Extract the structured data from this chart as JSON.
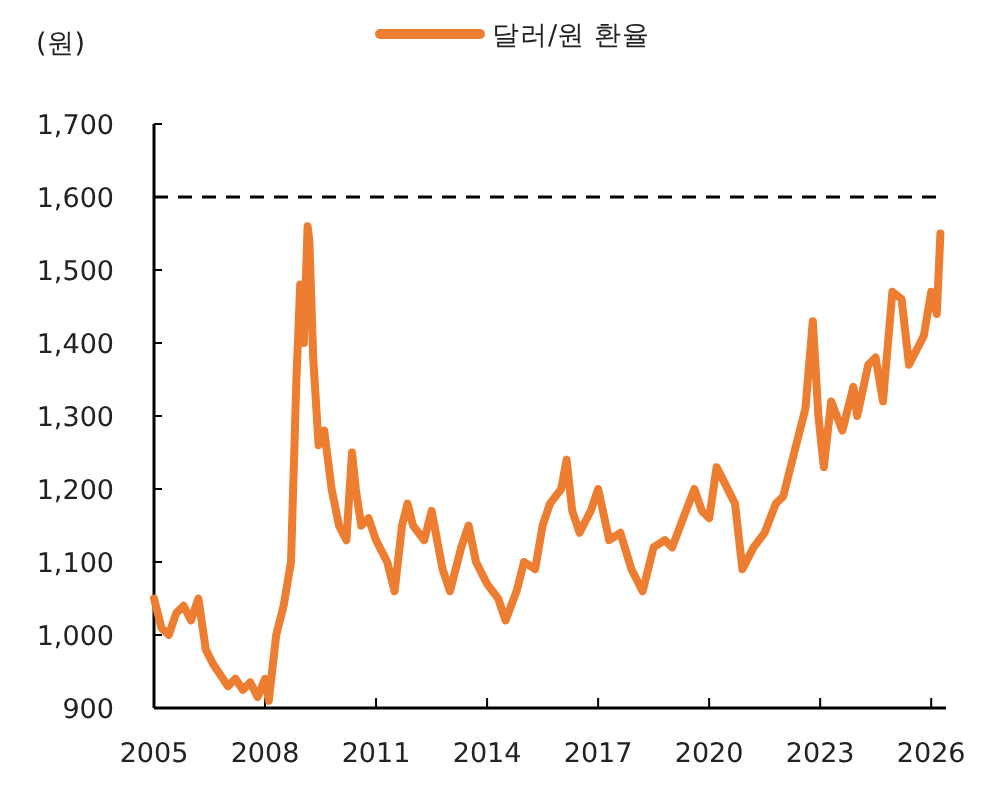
{
  "chart_data": {
    "type": "line",
    "ylabel": "(원)",
    "legend": "top",
    "grid": false,
    "xlim": [
      2005,
      2026.4
    ],
    "xticks": [
      2005,
      2008,
      2011,
      2014,
      2017,
      2020,
      2023,
      2026
    ],
    "ylim": [
      900,
      1700
    ],
    "yticks": [
      {
        "value": 900,
        "label": "900"
      },
      {
        "value": 1000,
        "label": "1,000"
      },
      {
        "value": 1100,
        "label": "1,100"
      },
      {
        "value": 1200,
        "label": "1,200"
      },
      {
        "value": 1300,
        "label": "1,300"
      },
      {
        "value": 1400,
        "label": "1,400"
      },
      {
        "value": 1500,
        "label": "1,500"
      },
      {
        "value": 1600,
        "label": "1,600"
      },
      {
        "value": 1700,
        "label": "1,700"
      }
    ],
    "ref_lines": [
      {
        "axis": "y",
        "value": 1600,
        "color": "#000000",
        "line_style": "dashed"
      }
    ],
    "series": [
      {
        "name": "달러/원 환율",
        "color": "#ed7d31",
        "x": [
          2005.0,
          2005.2,
          2005.4,
          2005.6,
          2005.8,
          2006.0,
          2006.2,
          2006.4,
          2006.6,
          2006.8,
          2007.0,
          2007.2,
          2007.4,
          2007.6,
          2007.8,
          2008.0,
          2008.1,
          2008.3,
          2008.5,
          2008.7,
          2008.85,
          2008.95,
          2009.05,
          2009.15,
          2009.2,
          2009.3,
          2009.45,
          2009.6,
          2009.8,
          2010.0,
          2010.2,
          2010.35,
          2010.45,
          2010.6,
          2010.8,
          2011.0,
          2011.3,
          2011.5,
          2011.7,
          2011.85,
          2012.0,
          2012.3,
          2012.5,
          2012.8,
          2013.0,
          2013.3,
          2013.5,
          2013.7,
          2014.0,
          2014.3,
          2014.5,
          2014.8,
          2015.0,
          2015.3,
          2015.5,
          2015.7,
          2016.0,
          2016.15,
          2016.3,
          2016.5,
          2016.8,
          2017.0,
          2017.3,
          2017.6,
          2017.9,
          2018.2,
          2018.5,
          2018.8,
          2019.0,
          2019.3,
          2019.6,
          2019.8,
          2020.0,
          2020.2,
          2020.4,
          2020.7,
          2020.9,
          2021.2,
          2021.5,
          2021.8,
          2022.0,
          2022.3,
          2022.6,
          2022.8,
          2022.95,
          2023.1,
          2023.3,
          2023.6,
          2023.9,
          2024.0,
          2024.3,
          2024.5,
          2024.7,
          2024.95,
          2025.2,
          2025.4,
          2025.6,
          2025.8,
          2026.0,
          2026.15,
          2026.25
        ],
        "values": [
          1050,
          1010,
          1000,
          1030,
          1040,
          1020,
          1050,
          980,
          960,
          945,
          930,
          940,
          925,
          935,
          915,
          940,
          910,
          1000,
          1040,
          1100,
          1350,
          1480,
          1400,
          1560,
          1540,
          1380,
          1260,
          1280,
          1200,
          1150,
          1130,
          1250,
          1200,
          1150,
          1160,
          1130,
          1100,
          1060,
          1150,
          1180,
          1150,
          1130,
          1170,
          1090,
          1060,
          1120,
          1150,
          1100,
          1070,
          1050,
          1020,
          1060,
          1100,
          1090,
          1150,
          1180,
          1200,
          1240,
          1170,
          1140,
          1170,
          1200,
          1130,
          1140,
          1090,
          1060,
          1120,
          1130,
          1120,
          1160,
          1200,
          1170,
          1160,
          1230,
          1210,
          1180,
          1090,
          1120,
          1140,
          1180,
          1190,
          1250,
          1310,
          1430,
          1300,
          1230,
          1320,
          1280,
          1340,
          1300,
          1370,
          1380,
          1320,
          1470,
          1460,
          1370,
          1390,
          1410,
          1470,
          1440,
          1550
        ]
      }
    ]
  }
}
